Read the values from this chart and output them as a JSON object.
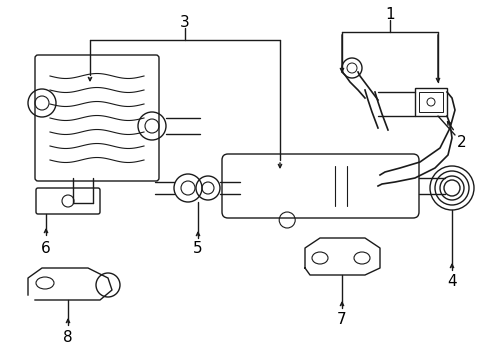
{
  "bg_color": "#ffffff",
  "line_color": "#1a1a1a",
  "label_color": "#000000",
  "label_fontsize": 10,
  "lw": 1.0
}
